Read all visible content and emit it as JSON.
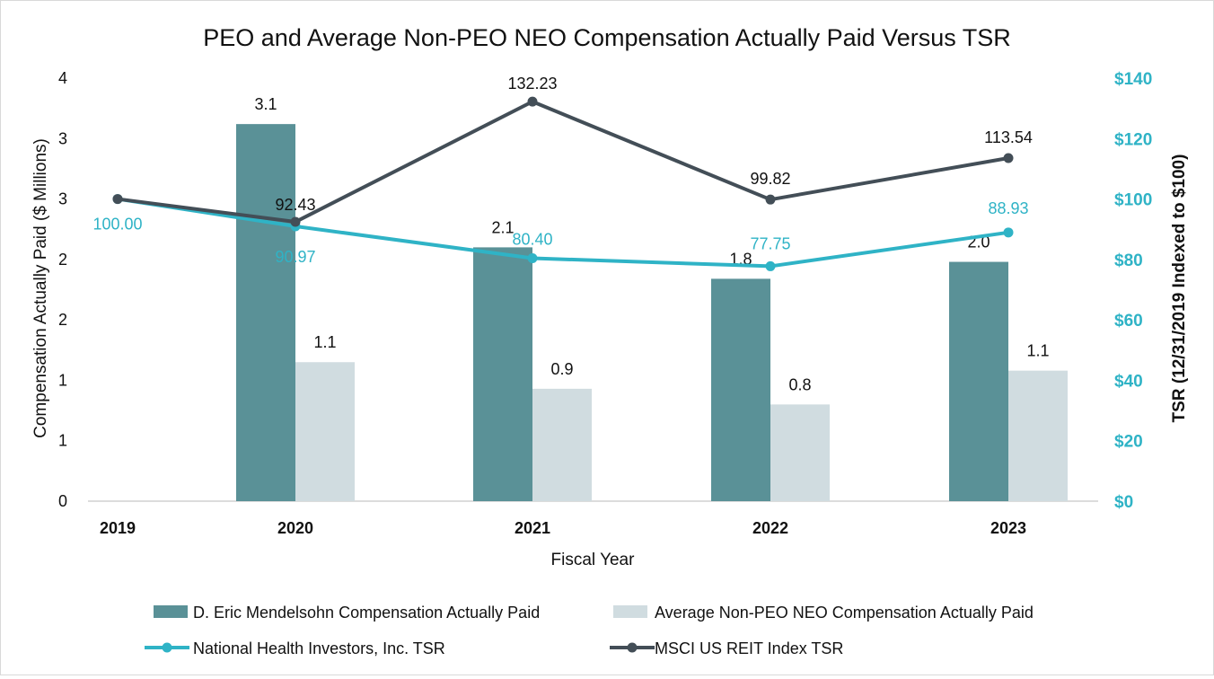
{
  "chart_data": {
    "type": "bar",
    "title": "PEO and Average Non-PEO NEO Compensation Actually Paid Versus TSR",
    "xlabel": "Fiscal Year",
    "ylabel_left": "Compensation Actually Paid ($ Millions)",
    "ylabel_right": "TSR (12/31/2019 Indexed to $100)",
    "categories": [
      "2019",
      "2020",
      "2021",
      "2022",
      "2023"
    ],
    "y_left_ticks": [
      "0",
      "1",
      "1",
      "2",
      "2",
      "3",
      "3",
      "4"
    ],
    "y_left_range": [
      0,
      3.5
    ],
    "y_right_ticks": [
      "$0",
      "$20",
      "$40",
      "$60",
      "$80",
      "$100",
      "$120",
      "$140"
    ],
    "y_right_range": [
      0,
      140
    ],
    "grid": false,
    "legend_position": "bottom",
    "bar_series": [
      {
        "name": "D. Eric Mendelsohn Compensation Actually Paid",
        "color": "#5a9197",
        "values": [
          null,
          3.12,
          2.1,
          1.84,
          1.98
        ],
        "labels": [
          "",
          "3.1",
          "2.1",
          "1.8",
          "2.0"
        ]
      },
      {
        "name": "Average Non-PEO NEO Compensation Actually Paid",
        "color": "#d0dce0",
        "values": [
          null,
          1.15,
          0.93,
          0.8,
          1.08
        ],
        "labels": [
          "",
          "1.1",
          "0.9",
          "0.8",
          "1.1"
        ]
      }
    ],
    "line_series": [
      {
        "name": "National Health Investors, Inc. TSR",
        "color": "#2fb3c6",
        "values": [
          100.0,
          90.97,
          80.4,
          77.75,
          88.93
        ],
        "labels": [
          "100.00",
          "90.97",
          "80.40",
          "77.75",
          "88.93"
        ]
      },
      {
        "name": "MSCI US REIT Index TSR",
        "color": "#434e57",
        "values": [
          100.0,
          92.43,
          132.23,
          99.82,
          113.54
        ],
        "labels": [
          "",
          "92.43",
          "132.23",
          "99.82",
          "113.54"
        ]
      }
    ]
  }
}
